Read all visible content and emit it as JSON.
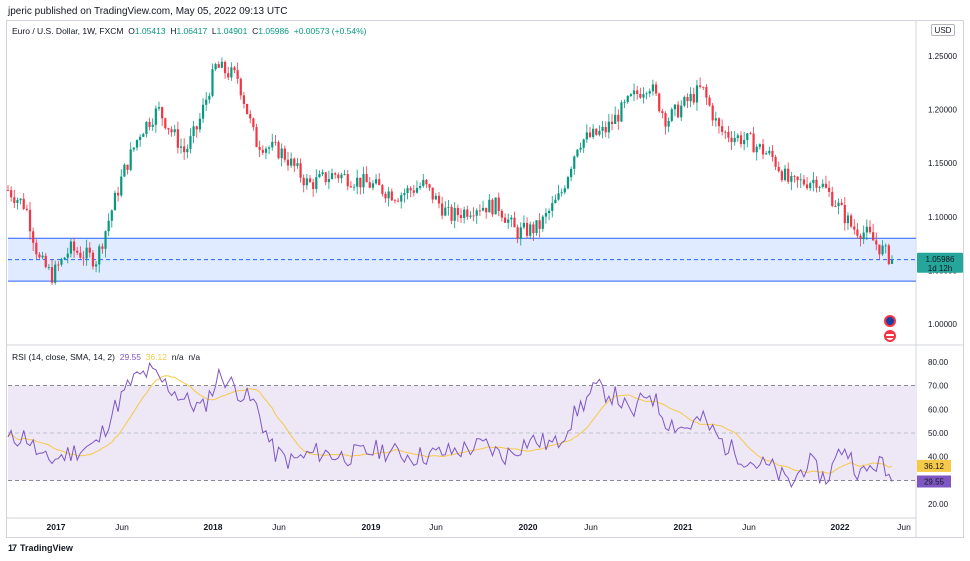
{
  "header": {
    "publisher": "jperic published on TradingView.com, May 05, 2022 09:13 UTC"
  },
  "legend": {
    "symbol": "Euro / U.S. Dollar, 1W, FXCM",
    "o_label": "O",
    "o_value": "1.05413",
    "h_label": "H",
    "h_value": "1.06417",
    "l_label": "L",
    "l_value": "1.04901",
    "c_label": "C",
    "c_value": "1.05986",
    "change": "+0.00573 (+0.54%)"
  },
  "rsi_legend": {
    "label": "RSI (14, close, SMA, 14, 2)",
    "rsi_value": "29.55",
    "sma_value": "36.12",
    "na1": "n/a",
    "na2": "n/a"
  },
  "currency_box": "USD",
  "price_badge": {
    "value": "1.05986",
    "countdown": "1d 12h"
  },
  "rsi_badges": {
    "sma": "36.12",
    "rsi": "29.55"
  },
  "footer": {
    "brand": "TradingView",
    "logo": "17"
  },
  "colors": {
    "up": "#089981",
    "down": "#f23645",
    "zone_fill": "#d6e4ff",
    "zone_line": "#2962ff",
    "rsi_line": "#7e57c2",
    "rsi_sma": "#f7c948",
    "rsi_band": "#ede7f6",
    "price_badge": "#26a69a"
  },
  "chart_data": [
    {
      "type": "candlestick",
      "title": "Euro / U.S. Dollar, 1W, FXCM",
      "ylim": [
        0.985,
        1.265
      ],
      "y_ticks": [
        "1.25000",
        "1.20000",
        "1.15000",
        "1.10000",
        "1.05000",
        "1.00000"
      ],
      "x_ticks": [
        "2017",
        "Jun",
        "2018",
        "Jun",
        "2019",
        "Jun",
        "2020",
        "Jun",
        "2021",
        "Jun",
        "2022",
        "Jun"
      ],
      "x_tick_bold": [
        true,
        false,
        true,
        false,
        true,
        false,
        true,
        false,
        true,
        false,
        true,
        false
      ],
      "support_zone": {
        "low": 1.04,
        "high": 1.08,
        "midline": 1.06
      },
      "last_close": 1.05986,
      "anchors": [
        {
          "t": 0,
          "close": 1.125
        },
        {
          "t": 0.02,
          "close": 1.11
        },
        {
          "t": 0.035,
          "close": 1.06
        },
        {
          "t": 0.05,
          "close": 1.045
        },
        {
          "t": 0.07,
          "close": 1.07
        },
        {
          "t": 0.1,
          "close": 1.06
        },
        {
          "t": 0.115,
          "close": 1.1
        },
        {
          "t": 0.13,
          "close": 1.14
        },
        {
          "t": 0.15,
          "close": 1.18
        },
        {
          "t": 0.17,
          "close": 1.2
        },
        {
          "t": 0.2,
          "close": 1.16
        },
        {
          "t": 0.215,
          "close": 1.185
        },
        {
          "t": 0.235,
          "close": 1.24
        },
        {
          "t": 0.26,
          "close": 1.23
        },
        {
          "t": 0.28,
          "close": 1.17
        },
        {
          "t": 0.31,
          "close": 1.16
        },
        {
          "t": 0.34,
          "close": 1.13
        },
        {
          "t": 0.37,
          "close": 1.14
        },
        {
          "t": 0.41,
          "close": 1.13
        },
        {
          "t": 0.44,
          "close": 1.12
        },
        {
          "t": 0.47,
          "close": 1.13
        },
        {
          "t": 0.5,
          "close": 1.1
        },
        {
          "t": 0.53,
          "close": 1.11
        },
        {
          "t": 0.555,
          "close": 1.11
        },
        {
          "t": 0.575,
          "close": 1.085
        },
        {
          "t": 0.6,
          "close": 1.09
        },
        {
          "t": 0.625,
          "close": 1.12
        },
        {
          "t": 0.645,
          "close": 1.17
        },
        {
          "t": 0.675,
          "close": 1.18
        },
        {
          "t": 0.705,
          "close": 1.21
        },
        {
          "t": 0.725,
          "close": 1.225
        },
        {
          "t": 0.745,
          "close": 1.19
        },
        {
          "t": 0.765,
          "close": 1.205
        },
        {
          "t": 0.785,
          "close": 1.22
        },
        {
          "t": 0.805,
          "close": 1.18
        },
        {
          "t": 0.84,
          "close": 1.17
        },
        {
          "t": 0.865,
          "close": 1.155
        },
        {
          "t": 0.885,
          "close": 1.13
        },
        {
          "t": 0.915,
          "close": 1.135
        },
        {
          "t": 0.935,
          "close": 1.115
        },
        {
          "t": 0.955,
          "close": 1.09
        },
        {
          "t": 0.97,
          "close": 1.085
        },
        {
          "t": 1,
          "close": 1.05986
        }
      ]
    },
    {
      "type": "line",
      "title": "RSI (14, close, SMA, 14, 2)",
      "ylim": [
        15,
        85
      ],
      "y_ticks": [
        "80.00",
        "70.00",
        "60.00",
        "50.00",
        "40.00",
        "20.00"
      ],
      "bands": {
        "upper": 70,
        "middle": 50,
        "lower": 30
      },
      "series": [
        {
          "name": "RSI",
          "last": 29.55
        },
        {
          "name": "SMA",
          "last": 36.12
        }
      ],
      "rsi_anchors": [
        {
          "t": 0,
          "v": 47
        },
        {
          "t": 0.02,
          "v": 49
        },
        {
          "t": 0.04,
          "v": 38
        },
        {
          "t": 0.06,
          "v": 40
        },
        {
          "t": 0.08,
          "v": 43
        },
        {
          "t": 0.1,
          "v": 45
        },
        {
          "t": 0.12,
          "v": 60
        },
        {
          "t": 0.14,
          "v": 72
        },
        {
          "t": 0.16,
          "v": 76
        },
        {
          "t": 0.18,
          "v": 70
        },
        {
          "t": 0.2,
          "v": 64
        },
        {
          "t": 0.22,
          "v": 60
        },
        {
          "t": 0.24,
          "v": 75
        },
        {
          "t": 0.26,
          "v": 68
        },
        {
          "t": 0.28,
          "v": 62
        },
        {
          "t": 0.3,
          "v": 42
        },
        {
          "t": 0.32,
          "v": 38
        },
        {
          "t": 0.35,
          "v": 42
        },
        {
          "t": 0.38,
          "v": 40
        },
        {
          "t": 0.42,
          "v": 43
        },
        {
          "t": 0.46,
          "v": 40
        },
        {
          "t": 0.5,
          "v": 42
        },
        {
          "t": 0.54,
          "v": 45
        },
        {
          "t": 0.56,
          "v": 40
        },
        {
          "t": 0.59,
          "v": 47
        },
        {
          "t": 0.62,
          "v": 45
        },
        {
          "t": 0.645,
          "v": 60
        },
        {
          "t": 0.665,
          "v": 69
        },
        {
          "t": 0.69,
          "v": 65
        },
        {
          "t": 0.705,
          "v": 57
        },
        {
          "t": 0.725,
          "v": 68
        },
        {
          "t": 0.745,
          "v": 55
        },
        {
          "t": 0.765,
          "v": 52
        },
        {
          "t": 0.785,
          "v": 56
        },
        {
          "t": 0.81,
          "v": 45
        },
        {
          "t": 0.84,
          "v": 38
        },
        {
          "t": 0.865,
          "v": 35
        },
        {
          "t": 0.885,
          "v": 28
        },
        {
          "t": 0.905,
          "v": 38
        },
        {
          "t": 0.925,
          "v": 30
        },
        {
          "t": 0.945,
          "v": 45
        },
        {
          "t": 0.965,
          "v": 32
        },
        {
          "t": 0.985,
          "v": 38
        },
        {
          "t": 1,
          "v": 29.55
        }
      ]
    }
  ]
}
